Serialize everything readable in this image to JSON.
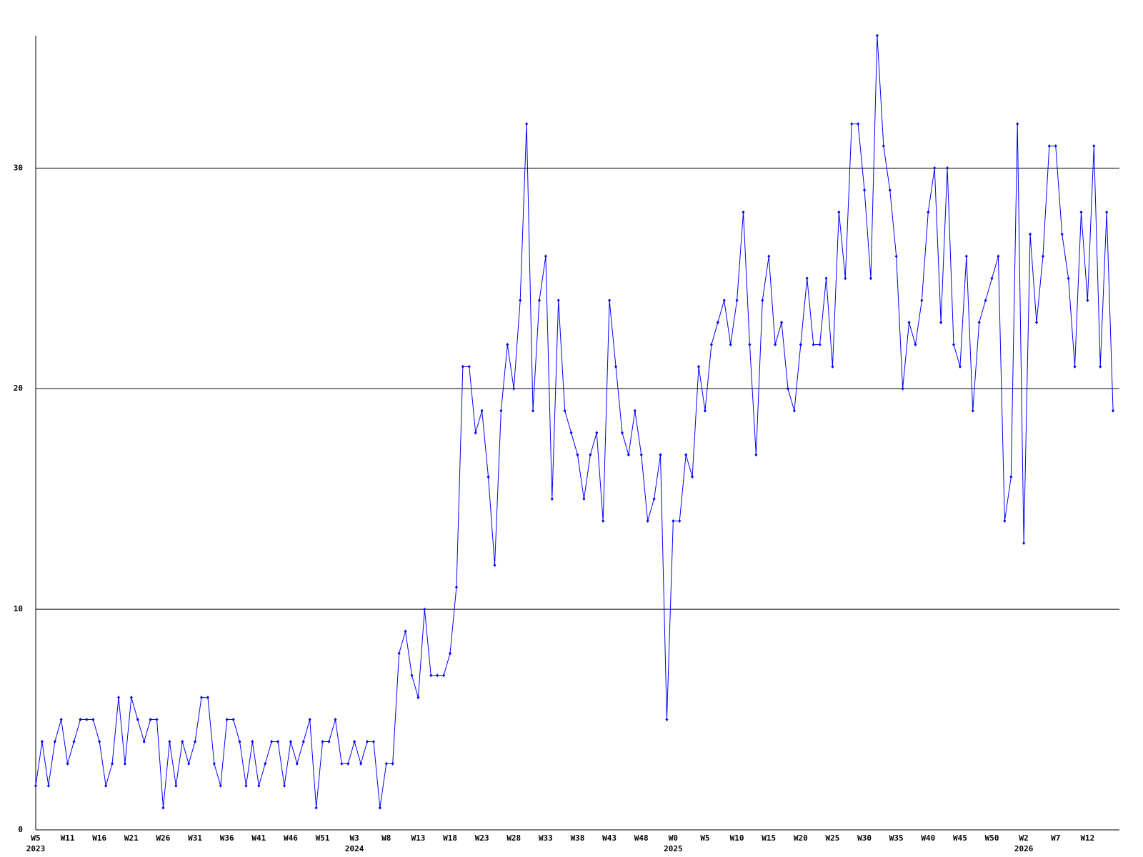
{
  "chart_data": {
    "type": "line",
    "categories": [
      "W5",
      null,
      null,
      null,
      null,
      "W11",
      null,
      null,
      null,
      null,
      "W16",
      null,
      null,
      null,
      null,
      "W21",
      null,
      null,
      null,
      null,
      "W26",
      null,
      null,
      null,
      null,
      "W31",
      null,
      null,
      null,
      null,
      "W36",
      null,
      null,
      null,
      null,
      "W41",
      null,
      null,
      null,
      null,
      "W46",
      null,
      null,
      null,
      null,
      "W51",
      null,
      null,
      null,
      null,
      "W3",
      null,
      null,
      null,
      null,
      "W8",
      null,
      null,
      null,
      null,
      "W13",
      null,
      null,
      null,
      null,
      "W18",
      null,
      null,
      null,
      null,
      "W23",
      null,
      null,
      null,
      null,
      "W28",
      null,
      null,
      null,
      null,
      "W33",
      null,
      null,
      null,
      null,
      "W38",
      null,
      null,
      null,
      null,
      "W43",
      null,
      null,
      null,
      null,
      "W48",
      null,
      null,
      null,
      null,
      "W0",
      null,
      null,
      null,
      null,
      "W5",
      null,
      null,
      null,
      null,
      "W10",
      null,
      null,
      null,
      null,
      "W15",
      null,
      null,
      null,
      null,
      "W20",
      null,
      null,
      null,
      null,
      "W25",
      null,
      null,
      null,
      null,
      "W30",
      null,
      null,
      null,
      null,
      "W35",
      null,
      null,
      null,
      null,
      "W40",
      null,
      null,
      null,
      null,
      "W45",
      null,
      null,
      null,
      null,
      "W50",
      null,
      null,
      null,
      null,
      "W2",
      null,
      null,
      null,
      null,
      "W7",
      null,
      null,
      null,
      null,
      "W12",
      null,
      null,
      null,
      null
    ],
    "x_year_labels": [
      "2023",
      null,
      null,
      null,
      null,
      null,
      null,
      null,
      null,
      null,
      null,
      null,
      null,
      null,
      null,
      null,
      null,
      null,
      null,
      null,
      null,
      null,
      null,
      null,
      null,
      null,
      null,
      null,
      null,
      null,
      null,
      null,
      null,
      null,
      null,
      null,
      null,
      null,
      null,
      null,
      null,
      null,
      null,
      null,
      null,
      null,
      null,
      null,
      null,
      null,
      "2024",
      null,
      null,
      null,
      null,
      null,
      null,
      null,
      null,
      null,
      null,
      null,
      null,
      null,
      null,
      null,
      null,
      null,
      null,
      null,
      null,
      null,
      null,
      null,
      null,
      null,
      null,
      null,
      null,
      null,
      null,
      null,
      null,
      null,
      null,
      null,
      null,
      null,
      null,
      null,
      null,
      null,
      null,
      null,
      null,
      null,
      null,
      null,
      null,
      null,
      "2025",
      null,
      null,
      null,
      null,
      null,
      null,
      null,
      null,
      null,
      null,
      null,
      null,
      null,
      null,
      null,
      null,
      null,
      null,
      null,
      null,
      null,
      null,
      null,
      null,
      null,
      null,
      null,
      null,
      null,
      null,
      null,
      null,
      null,
      null,
      null,
      null,
      null,
      null,
      null,
      null,
      null,
      null,
      null,
      null,
      null,
      null,
      null,
      null,
      null,
      null,
      null,
      null,
      null,
      null,
      "2026",
      null,
      null,
      null,
      null,
      null,
      null,
      null,
      null,
      null,
      null,
      null,
      null,
      null,
      null
    ],
    "series": [
      {
        "color": "#0000ff",
        "values": [
          2,
          4,
          2,
          4,
          5,
          3,
          4,
          5,
          5,
          5,
          4,
          2,
          3,
          6,
          3,
          6,
          5,
          4,
          5,
          5,
          1,
          4,
          2,
          4,
          3,
          4,
          6,
          6,
          3,
          2,
          5,
          5,
          4,
          2,
          4,
          2,
          3,
          4,
          4,
          2,
          4,
          3,
          4,
          5,
          1,
          4,
          4,
          5,
          3,
          3,
          4,
          3,
          4,
          4,
          1,
          3,
          3,
          8,
          9,
          7,
          6,
          10,
          7,
          7,
          7,
          8,
          11,
          21,
          21,
          18,
          19,
          16,
          12,
          19,
          22,
          20,
          24,
          32,
          19,
          24,
          26,
          15,
          24,
          19,
          18,
          17,
          15,
          17,
          18,
          14,
          24,
          21,
          18,
          17,
          19,
          17,
          14,
          15,
          17,
          5,
          14,
          14,
          17,
          16,
          21,
          19,
          22,
          23,
          24,
          22,
          24,
          28,
          22,
          17,
          24,
          26,
          22,
          23,
          20,
          19,
          22,
          25,
          22,
          22,
          25,
          21,
          28,
          25,
          32,
          32,
          29,
          25,
          36,
          31,
          29,
          26,
          20,
          23,
          22,
          24,
          28,
          30,
          23,
          30,
          22,
          21,
          26,
          19,
          23,
          24,
          25,
          26,
          14,
          16,
          32,
          13,
          27,
          23,
          26,
          31,
          31,
          27,
          25,
          21,
          28,
          24,
          31,
          21,
          28,
          19
        ]
      }
    ],
    "ylim": [
      0,
      36
    ],
    "yticks": [
      0,
      10,
      20,
      30
    ],
    "grid": true,
    "grid_color": "#000000"
  }
}
